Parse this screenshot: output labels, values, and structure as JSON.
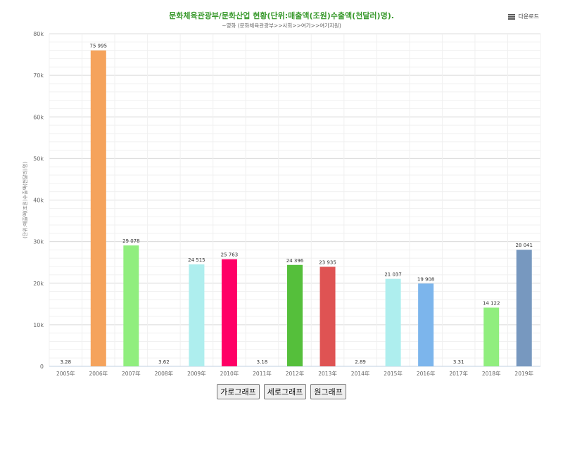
{
  "header": {
    "title": "문화체육관광부/문화산업 현황(단위:매출액(조원)수출액(천달러)명).",
    "subtitle": "~영화 (문화체육관광부>>사회>>여가>>여가지원)",
    "download_label": "다운로드",
    "download_icon": "menu-icon"
  },
  "chart_data": {
    "type": "bar",
    "title": "문화체육관광부/문화산업 현황(단위:매출액(조원)수출액(천달러)명).",
    "subtitle": "~영화 (문화체육관광부>>사회>>여가>>여가지원)",
    "ylabel": "(단위:매출액(조원)수출액(천달러)명)",
    "xlabel": "",
    "ylim": [
      0,
      80000
    ],
    "yticks": [
      "0",
      "10k",
      "20k",
      "30k",
      "40k",
      "50k",
      "60k",
      "70k",
      "80k"
    ],
    "grid": true,
    "categories": [
      "2005年",
      "2006年",
      "2007年",
      "2008年",
      "2009年",
      "2010年",
      "2011年",
      "2012年",
      "2013年",
      "2014年",
      "2015年",
      "2016年",
      "2017年",
      "2018年",
      "2019年"
    ],
    "values": [
      3.28,
      75995,
      29078,
      3.62,
      24515,
      25763,
      3.18,
      24396,
      23935,
      2.89,
      21037,
      19908,
      3.31,
      14122,
      28041
    ],
    "value_labels": [
      "3.28",
      "75 995",
      "29 078",
      "3.62",
      "24 515",
      "25 763",
      "3.18",
      "24 396",
      "23 935",
      "2.89",
      "21 037",
      "19 908",
      "3.31",
      "14 122",
      "28 041"
    ],
    "colors": [
      "#5b8fd6",
      "#f5a35c",
      "#90ee7e",
      "#7b9bd9",
      "#aeeeee",
      "#ff0066",
      "#7b9bd9",
      "#55bf3b",
      "#df5353",
      "#7b9bd9",
      "#aeeeee",
      "#7cb5ec",
      "#7b9bd9",
      "#90ee7e",
      "#7798bf"
    ]
  },
  "buttons": {
    "horizontal": "가로그래프",
    "vertical": "세로그래프",
    "pie": "원그래프"
  }
}
